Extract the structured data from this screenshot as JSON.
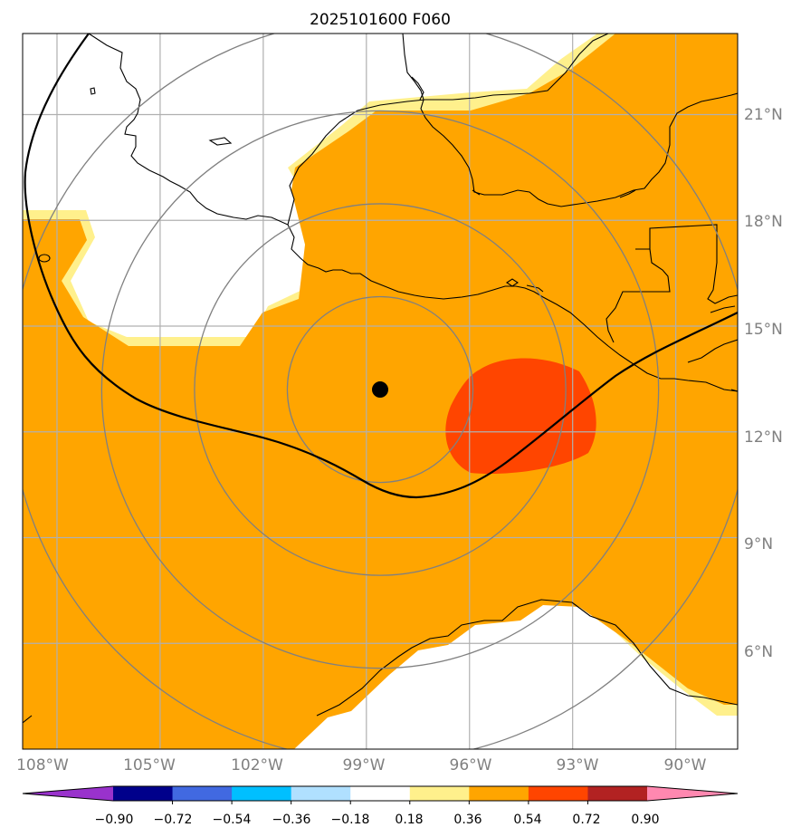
{
  "title": "2025101600 F060",
  "map": {
    "lon_range": [
      -109,
      -88.2
    ],
    "lat_range": [
      3,
      23.3
    ],
    "lat_ticks": [
      {
        "value": 6,
        "label": "6°N"
      },
      {
        "value": 9,
        "label": "9°N"
      },
      {
        "value": 12,
        "label": "12°N"
      },
      {
        "value": 15,
        "label": "15°N"
      },
      {
        "value": 18,
        "label": "18°N"
      },
      {
        "value": 21,
        "label": "21°N"
      }
    ],
    "lon_ticks": [
      {
        "value": -108,
        "label": "108°W"
      },
      {
        "value": -105,
        "label": "105°W"
      },
      {
        "value": -102,
        "label": "102°W"
      },
      {
        "value": -99,
        "label": "99°W"
      },
      {
        "value": -96,
        "label": "96°W"
      },
      {
        "value": -93,
        "label": "93°W"
      },
      {
        "value": -90,
        "label": "90°W"
      }
    ],
    "center": {
      "lon": -98.6,
      "lat": 13.2
    },
    "range_rings_deg": [
      2.7,
      5.4,
      8.1,
      10.8
    ],
    "colors": {
      "orange": "#ffa500",
      "light_yellow": "#fff08c",
      "red_orange": "#ff4500",
      "grid": "#b0b0b0",
      "ring": "#808080",
      "coast": "#000000",
      "track": "#000000"
    }
  },
  "colorbar": {
    "ticks": [
      "−0.90",
      "−0.72",
      "−0.54",
      "−0.36",
      "−0.18",
      "0.18",
      "0.36",
      "0.54",
      "0.72",
      "0.90"
    ],
    "colors": [
      "#9932cc",
      "#00008b",
      "#4169e1",
      "#00bfff",
      "#b0e0ff",
      "#ffffff",
      "#fff08c",
      "#ffa500",
      "#ff4500",
      "#b22222",
      "#ff88b0"
    ]
  }
}
